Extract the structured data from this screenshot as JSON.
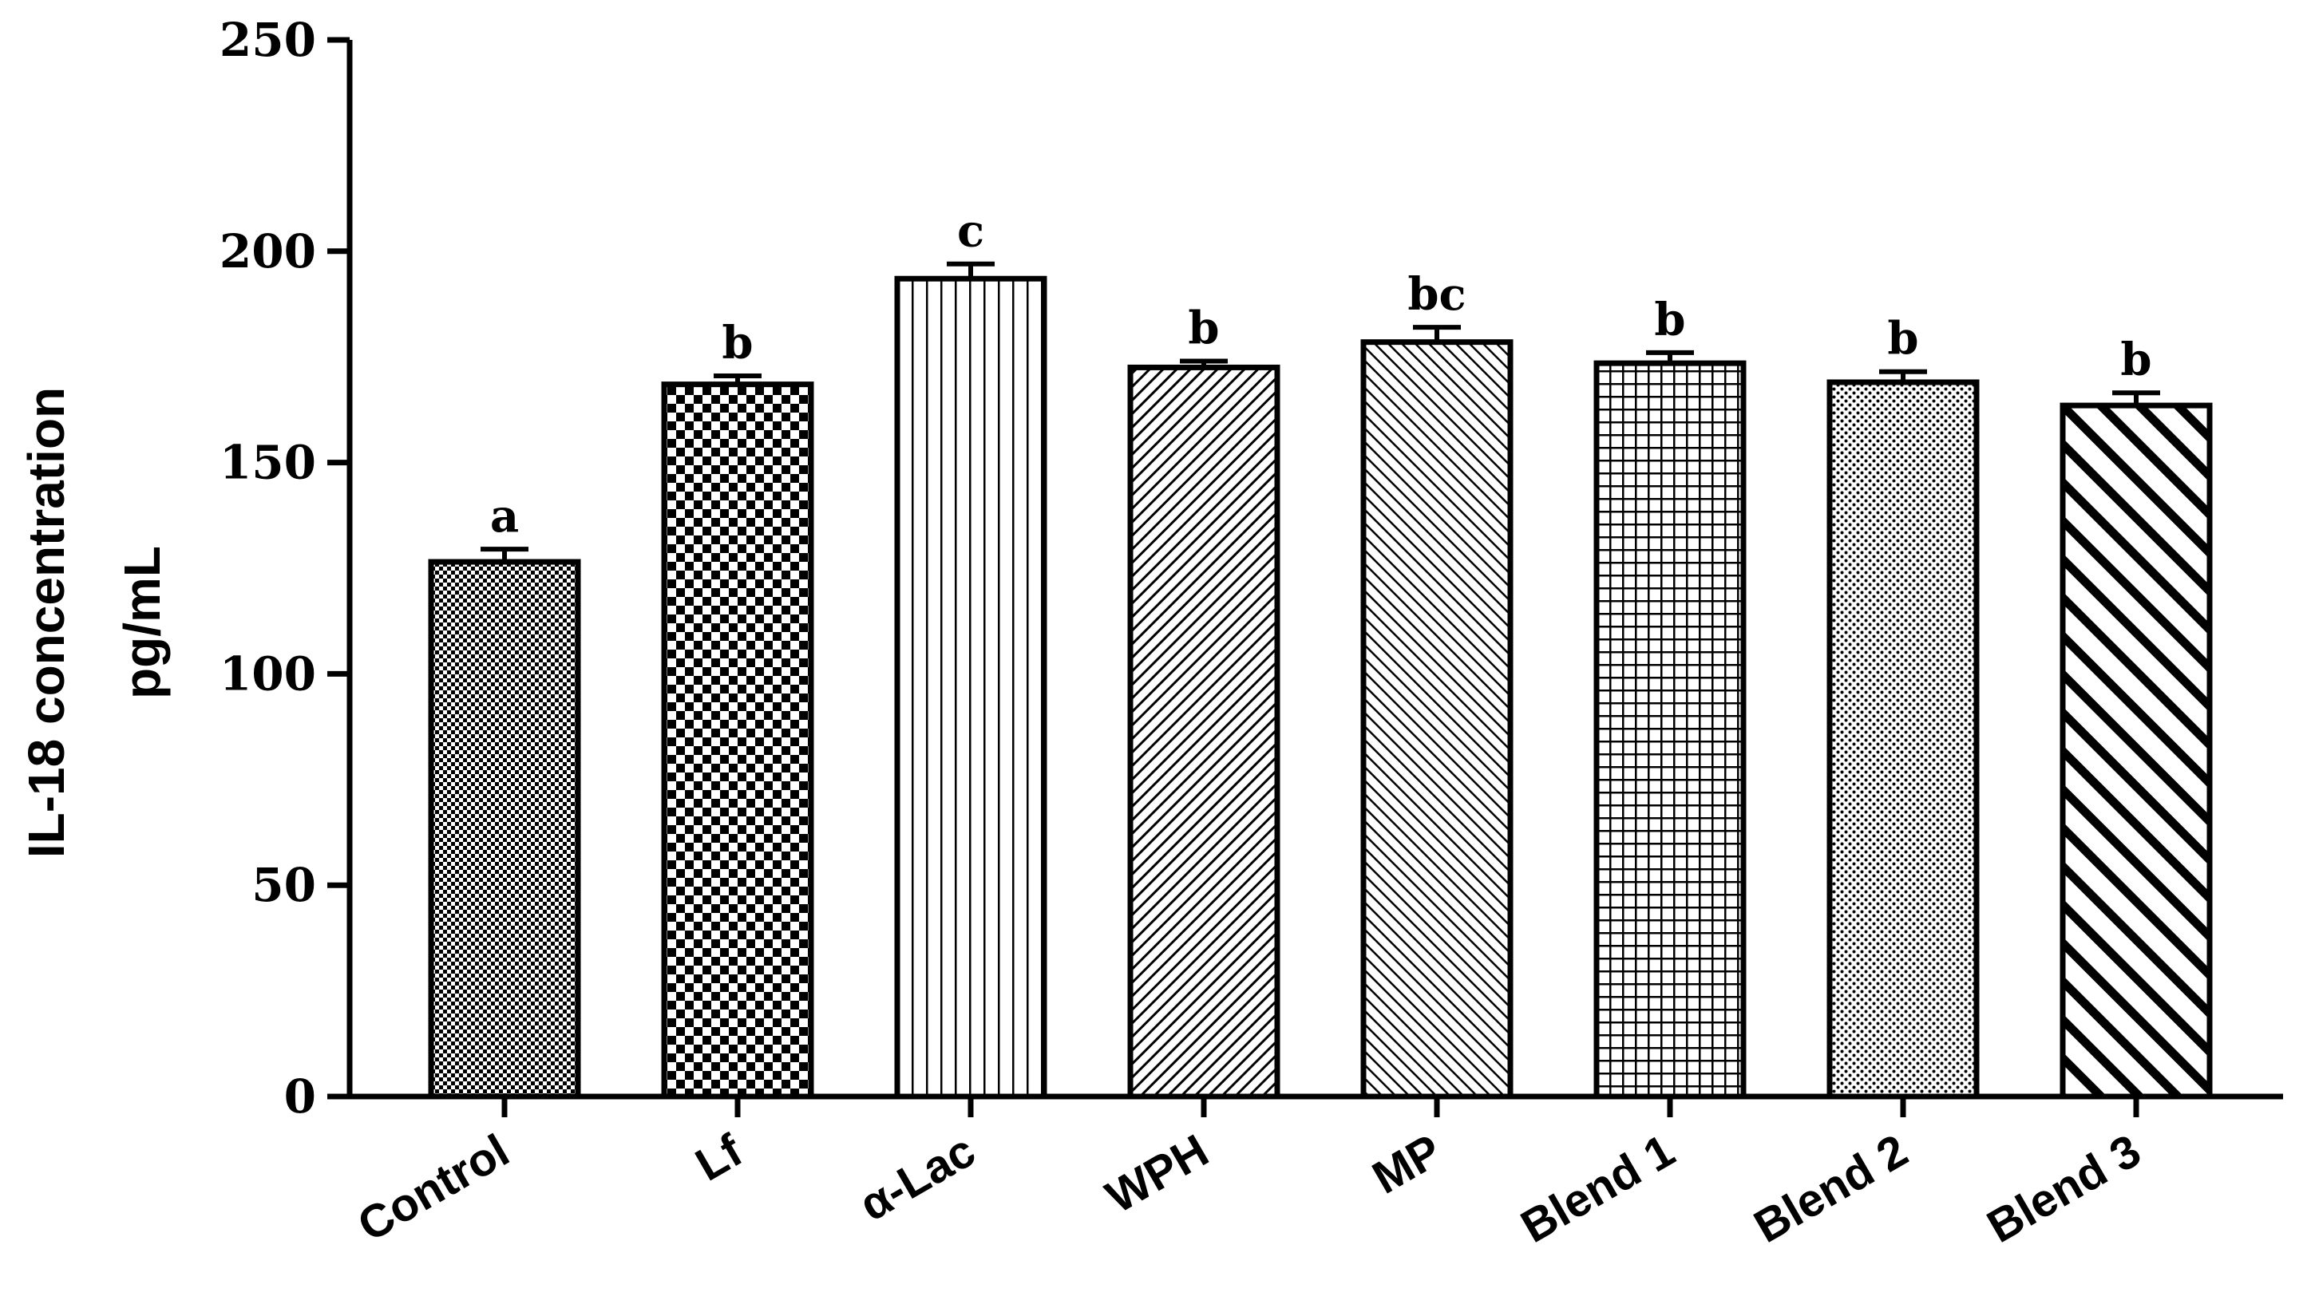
{
  "chart_data": {
    "type": "bar",
    "title": "",
    "xlabel": "",
    "ylabel_line1": "IL-18 concentration",
    "ylabel_line2": "pg/mL",
    "ylim": [
      0,
      250
    ],
    "yticks": [
      0,
      50,
      100,
      150,
      200,
      250
    ],
    "categories": [
      "Control",
      "Lf",
      "α-Lac",
      "WPH",
      "MP",
      "Blend 1",
      "Blend 2",
      "Blend 3"
    ],
    "values": [
      126.5,
      168.5,
      193.5,
      172.5,
      178.5,
      173.5,
      169,
      163.5
    ],
    "errors": [
      3,
      2,
      3.5,
      1.5,
      3.5,
      2.5,
      2.5,
      3
    ],
    "significance": [
      "a",
      "b",
      "c",
      "b",
      "bc",
      "b",
      "b",
      "b"
    ],
    "patterns": [
      "fine-checker",
      "checker",
      "vertical-lines",
      "diagonal-fine",
      "diagonal-back-fine",
      "grid",
      "dots-diagonal",
      "diagonal-bold"
    ],
    "colors": {
      "bar_stroke": "#000000",
      "bar_fill": "#ffffff",
      "axis": "#000000"
    },
    "grid": false,
    "legend": "none"
  }
}
